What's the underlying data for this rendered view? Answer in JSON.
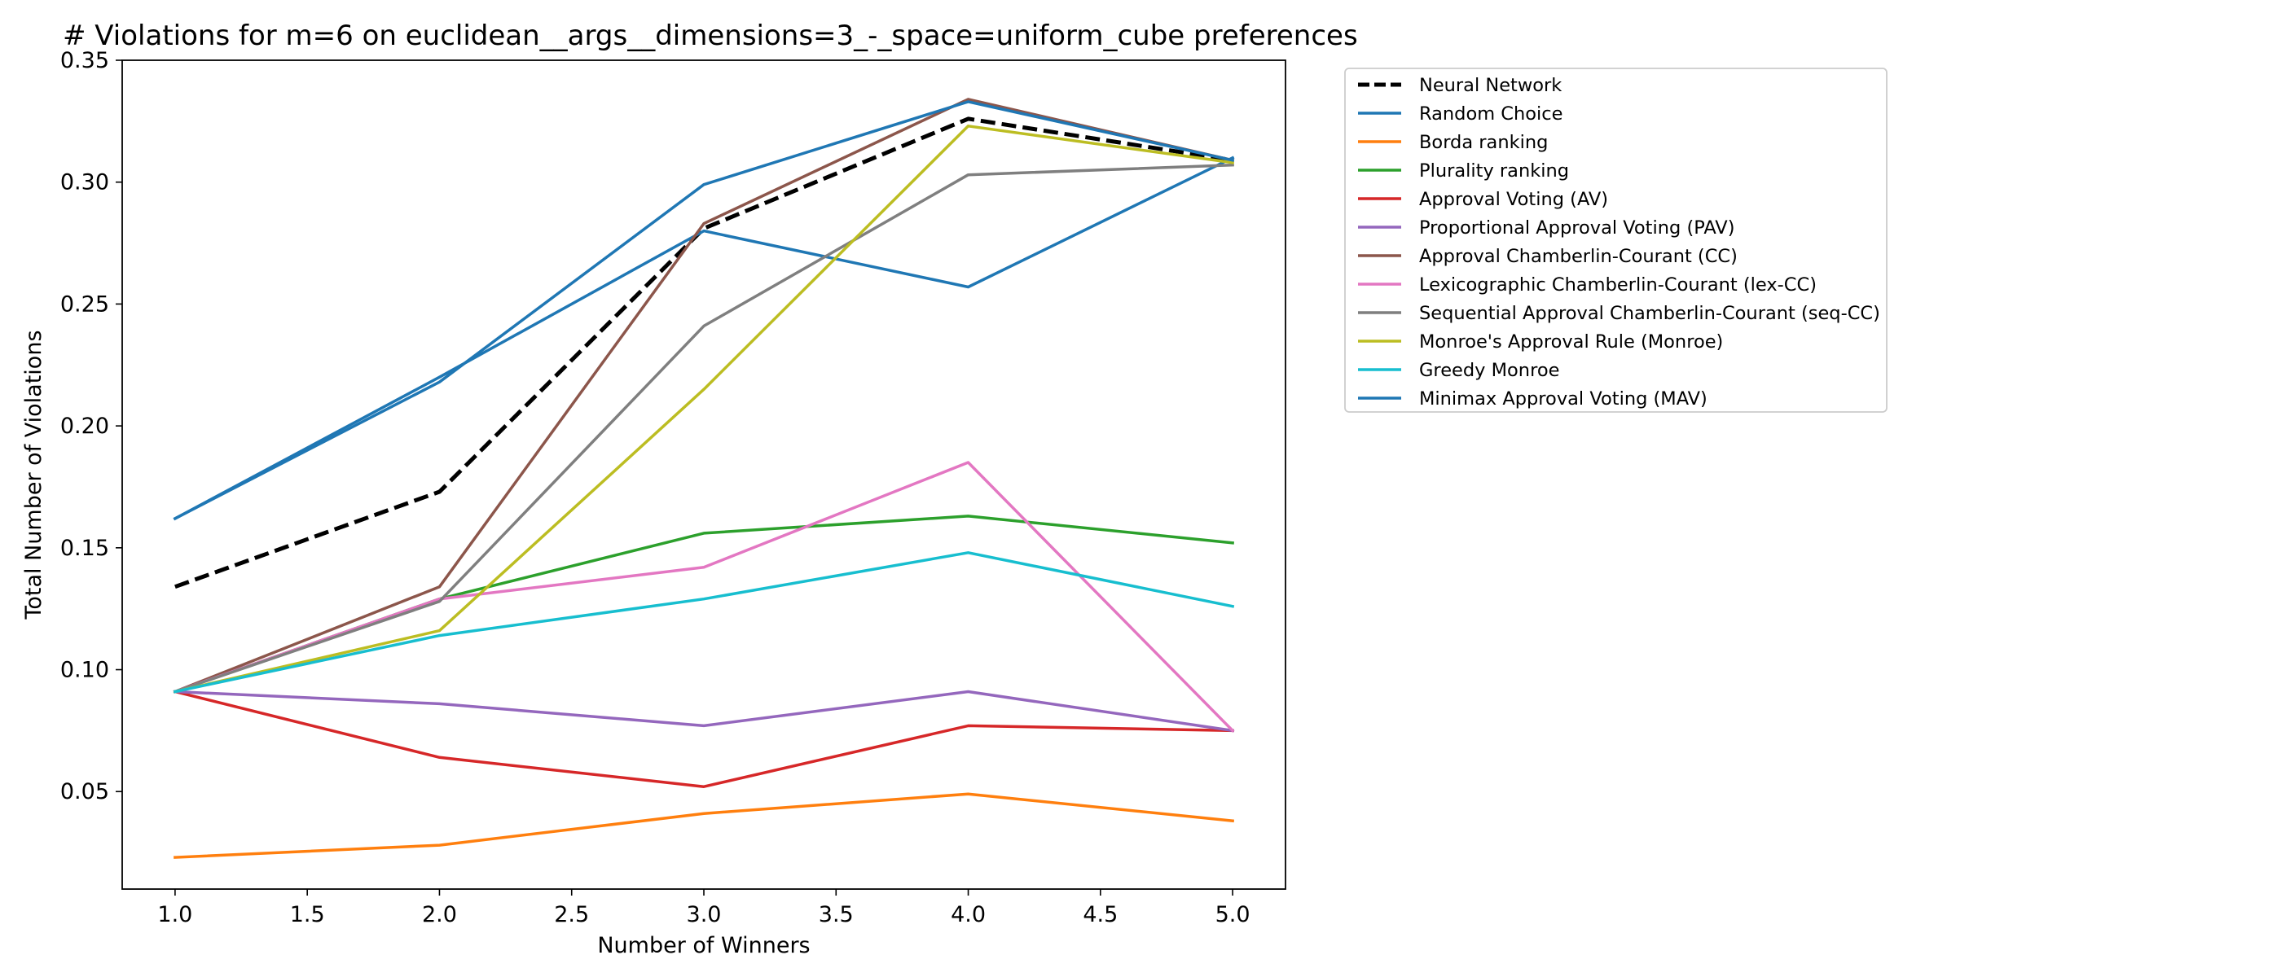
{
  "chart_data": {
    "type": "line",
    "title": "# Violations for m=6 on euclidean__args__dimensions=3_-_space=uniform_cube preferences",
    "xlabel": "Number of Winners",
    "ylabel": "Total Number of Violations",
    "x": [
      1.0,
      2.0,
      3.0,
      4.0,
      5.0
    ],
    "xlim": [
      0.8,
      5.2
    ],
    "ylim": [
      0.01,
      0.35
    ],
    "xticks": [
      1.0,
      1.5,
      2.0,
      2.5,
      3.0,
      3.5,
      4.0,
      4.5,
      5.0
    ],
    "xtick_labels": [
      "1.0",
      "1.5",
      "2.0",
      "2.5",
      "3.0",
      "3.5",
      "4.0",
      "4.5",
      "5.0"
    ],
    "yticks": [
      0.05,
      0.1,
      0.15,
      0.2,
      0.25,
      0.3,
      0.35
    ],
    "ytick_labels": [
      "0.05",
      "0.10",
      "0.15",
      "0.20",
      "0.25",
      "0.30",
      "0.35"
    ],
    "grid": false,
    "legend_position": "outside-right-top",
    "series": [
      {
        "name": "Neural Network",
        "color": "#000000",
        "dashed": true,
        "values": [
          0.134,
          0.173,
          0.281,
          0.326,
          0.309
        ]
      },
      {
        "name": "Random Choice",
        "color": "#1f77b4",
        "dashed": false,
        "values": [
          0.162,
          0.22,
          0.28,
          0.257,
          0.31
        ]
      },
      {
        "name": "Borda ranking",
        "color": "#ff7f0e",
        "dashed": false,
        "values": [
          0.023,
          0.028,
          0.041,
          0.049,
          0.038
        ]
      },
      {
        "name": "Plurality ranking",
        "color": "#2ca02c",
        "dashed": false,
        "values": [
          0.091,
          0.129,
          0.156,
          0.163,
          0.152
        ]
      },
      {
        "name": "Approval Voting (AV)",
        "color": "#d62728",
        "dashed": false,
        "values": [
          0.091,
          0.064,
          0.052,
          0.077,
          0.075
        ]
      },
      {
        "name": "Proportional Approval Voting (PAV)",
        "color": "#9467bd",
        "dashed": false,
        "values": [
          0.091,
          0.086,
          0.077,
          0.091,
          0.075
        ]
      },
      {
        "name": "Approval Chamberlin-Courant (CC)",
        "color": "#8c564b",
        "dashed": false,
        "values": [
          0.091,
          0.134,
          0.283,
          0.334,
          0.309
        ]
      },
      {
        "name": "Lexicographic Chamberlin-Courant (lex-CC)",
        "color": "#e377c2",
        "dashed": false,
        "values": [
          0.091,
          0.129,
          0.142,
          0.185,
          0.075
        ]
      },
      {
        "name": "Sequential Approval Chamberlin-Courant (seq-CC)",
        "color": "#7f7f7f",
        "dashed": false,
        "values": [
          0.091,
          0.128,
          0.241,
          0.303,
          0.307
        ]
      },
      {
        "name": "Monroe's Approval Rule (Monroe)",
        "color": "#bcbd22",
        "dashed": false,
        "values": [
          0.091,
          0.116,
          0.215,
          0.323,
          0.308
        ]
      },
      {
        "name": "Greedy Monroe",
        "color": "#17becf",
        "dashed": false,
        "values": [
          0.091,
          0.114,
          0.129,
          0.148,
          0.126
        ]
      },
      {
        "name": "Minimax Approval Voting (MAV)",
        "color": "#1f77b4",
        "dashed": false,
        "values": [
          0.162,
          0.218,
          0.299,
          0.333,
          0.309
        ]
      }
    ]
  }
}
